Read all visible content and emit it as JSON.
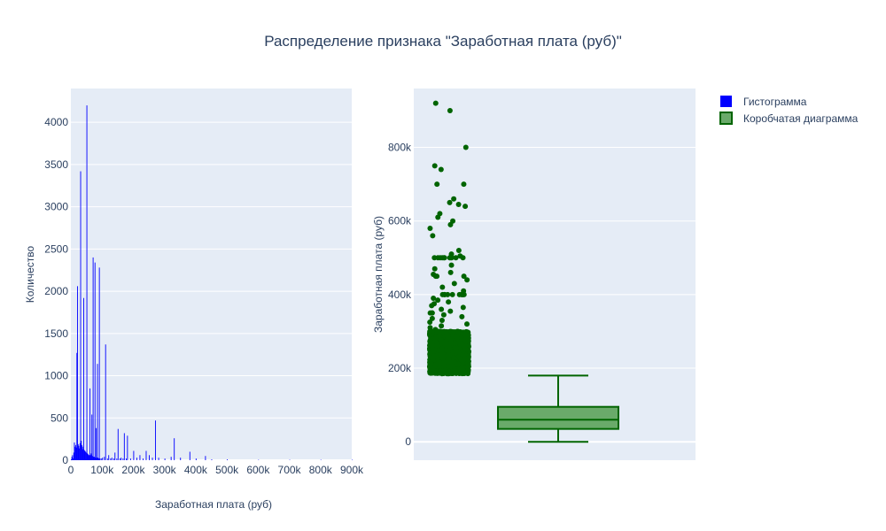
{
  "chart_data": {
    "title": "Распределение признака \"Заработная плата (руб)\"",
    "legend": {
      "placement": "top-right",
      "items": [
        {
          "name": "Гистограмма",
          "color": "#0000ff",
          "swatch": "square"
        },
        {
          "name": "Коробчатая диаграмма",
          "color": "#006400",
          "swatch": "box"
        }
      ]
    },
    "colors": {
      "plot_bg": "#e5ecf6",
      "grid": "#ffffff",
      "histogram": "#0000ff",
      "box": "#006400",
      "box_fill": "#6aaa6a"
    },
    "charts": [
      {
        "type": "bar",
        "subtype": "histogram",
        "series_name": "Гистограмма",
        "xlabel": "Заработная плата (руб)",
        "ylabel": "Количество",
        "xlim": [
          0,
          900000
        ],
        "ylim": [
          0,
          4400
        ],
        "grid": true,
        "x_ticks": [
          {
            "value": 0,
            "label": "0"
          },
          {
            "value": 100000,
            "label": "100k"
          },
          {
            "value": 200000,
            "label": "200k"
          },
          {
            "value": 300000,
            "label": "300k"
          },
          {
            "value": 400000,
            "label": "400k"
          },
          {
            "value": 500000,
            "label": "500k"
          },
          {
            "value": 600000,
            "label": "600k"
          },
          {
            "value": 700000,
            "label": "700k"
          },
          {
            "value": 800000,
            "label": "800k"
          },
          {
            "value": 900000,
            "label": "900k"
          }
        ],
        "y_ticks": [
          {
            "value": 0,
            "label": "0"
          },
          {
            "value": 500,
            "label": "500"
          },
          {
            "value": 1000,
            "label": "1000"
          },
          {
            "value": 1500,
            "label": "1500"
          },
          {
            "value": 2000,
            "label": "2000"
          },
          {
            "value": 2500,
            "label": "2500"
          },
          {
            "value": 3000,
            "label": "3000"
          },
          {
            "value": 3500,
            "label": "3500"
          },
          {
            "value": 4000,
            "label": "4000"
          }
        ],
        "bins": [
          {
            "x": 0,
            "y": 10
          },
          {
            "x": 2000,
            "y": 40
          },
          {
            "x": 4000,
            "y": 60
          },
          {
            "x": 6000,
            "y": 20
          },
          {
            "x": 8000,
            "y": 90
          },
          {
            "x": 10000,
            "y": 210
          },
          {
            "x": 12000,
            "y": 160
          },
          {
            "x": 14000,
            "y": 180
          },
          {
            "x": 16000,
            "y": 150
          },
          {
            "x": 18000,
            "y": 1270
          },
          {
            "x": 20000,
            "y": 2060
          },
          {
            "x": 22000,
            "y": 190
          },
          {
            "x": 24000,
            "y": 170
          },
          {
            "x": 26000,
            "y": 140
          },
          {
            "x": 28000,
            "y": 200
          },
          {
            "x": 30000,
            "y": 3420
          },
          {
            "x": 32000,
            "y": 230
          },
          {
            "x": 34000,
            "y": 180
          },
          {
            "x": 36000,
            "y": 160
          },
          {
            "x": 38000,
            "y": 130
          },
          {
            "x": 40000,
            "y": 1920
          },
          {
            "x": 42000,
            "y": 120
          },
          {
            "x": 44000,
            "y": 110
          },
          {
            "x": 46000,
            "y": 100
          },
          {
            "x": 48000,
            "y": 90
          },
          {
            "x": 50000,
            "y": 4200
          },
          {
            "x": 52000,
            "y": 80
          },
          {
            "x": 54000,
            "y": 70
          },
          {
            "x": 56000,
            "y": 60
          },
          {
            "x": 58000,
            "y": 60
          },
          {
            "x": 60000,
            "y": 850
          },
          {
            "x": 62000,
            "y": 60
          },
          {
            "x": 64000,
            "y": 80
          },
          {
            "x": 66000,
            "y": 540
          },
          {
            "x": 68000,
            "y": 50
          },
          {
            "x": 70000,
            "y": 2400
          },
          {
            "x": 72000,
            "y": 40
          },
          {
            "x": 74000,
            "y": 40
          },
          {
            "x": 76000,
            "y": 2340
          },
          {
            "x": 78000,
            "y": 30
          },
          {
            "x": 80000,
            "y": 380
          },
          {
            "x": 82000,
            "y": 30
          },
          {
            "x": 84000,
            "y": 1140
          },
          {
            "x": 86000,
            "y": 30
          },
          {
            "x": 88000,
            "y": 20
          },
          {
            "x": 90000,
            "y": 2280
          },
          {
            "x": 92000,
            "y": 20
          },
          {
            "x": 96000,
            "y": 20
          },
          {
            "x": 100000,
            "y": 30
          },
          {
            "x": 106000,
            "y": 40
          },
          {
            "x": 110000,
            "y": 1370
          },
          {
            "x": 116000,
            "y": 20
          },
          {
            "x": 120000,
            "y": 60
          },
          {
            "x": 126000,
            "y": 20
          },
          {
            "x": 130000,
            "y": 30
          },
          {
            "x": 136000,
            "y": 20
          },
          {
            "x": 140000,
            "y": 90
          },
          {
            "x": 146000,
            "y": 20
          },
          {
            "x": 150000,
            "y": 370
          },
          {
            "x": 156000,
            "y": 20
          },
          {
            "x": 160000,
            "y": 30
          },
          {
            "x": 166000,
            "y": 20
          },
          {
            "x": 170000,
            "y": 320
          },
          {
            "x": 176000,
            "y": 20
          },
          {
            "x": 180000,
            "y": 290
          },
          {
            "x": 190000,
            "y": 20
          },
          {
            "x": 200000,
            "y": 110
          },
          {
            "x": 210000,
            "y": 30
          },
          {
            "x": 220000,
            "y": 60
          },
          {
            "x": 230000,
            "y": 20
          },
          {
            "x": 240000,
            "y": 110
          },
          {
            "x": 250000,
            "y": 60
          },
          {
            "x": 260000,
            "y": 30
          },
          {
            "x": 270000,
            "y": 470
          },
          {
            "x": 280000,
            "y": 30
          },
          {
            "x": 300000,
            "y": 20
          },
          {
            "x": 320000,
            "y": 40
          },
          {
            "x": 330000,
            "y": 260
          },
          {
            "x": 350000,
            "y": 30
          },
          {
            "x": 380000,
            "y": 100
          },
          {
            "x": 400000,
            "y": 20
          },
          {
            "x": 430000,
            "y": 50
          },
          {
            "x": 450000,
            "y": 10
          },
          {
            "x": 500000,
            "y": 10
          },
          {
            "x": 600000,
            "y": 5
          },
          {
            "x": 700000,
            "y": 5
          },
          {
            "x": 800000,
            "y": 5
          },
          {
            "x": 900000,
            "y": 5
          }
        ],
        "bin_width": 1600
      },
      {
        "type": "box",
        "series_name": "Коробчатая диаграмма",
        "ylabel": "Заработная плата (руб)",
        "ylim": [
          -50000,
          960000
        ],
        "grid": true,
        "y_ticks": [
          {
            "value": 0,
            "label": "0"
          },
          {
            "value": 200000,
            "label": "200k"
          },
          {
            "value": 400000,
            "label": "400k"
          },
          {
            "value": 600000,
            "label": "600k"
          },
          {
            "value": 800000,
            "label": "800k"
          }
        ],
        "stats": {
          "min": 0,
          "q1": 35000,
          "median": 60000,
          "q3": 95000,
          "max": 180000
        },
        "outlier_band": {
          "min": 185000,
          "max": 300000,
          "count": 1800
        },
        "outliers": [
          920000,
          900000,
          800000,
          750000,
          740000,
          700000,
          700000,
          660000,
          650000,
          645000,
          640000,
          620000,
          610000,
          600000,
          590000,
          580000,
          560000,
          520000,
          510000,
          505000,
          500000,
          500000,
          500000,
          500000,
          500000,
          500000,
          500000,
          500000,
          500000,
          500000,
          480000,
          470000,
          460000,
          455000,
          450000,
          450000,
          450000,
          440000,
          430000,
          420000,
          410000,
          400000,
          400000,
          400000,
          400000,
          400000,
          400000,
          400000,
          400000,
          400000,
          400000,
          390000,
          385000,
          380000,
          375000,
          370000,
          365000,
          360000,
          355000,
          350000,
          350000,
          350000,
          345000,
          340000,
          335000,
          330000,
          325000,
          320000,
          315000,
          310000,
          305000,
          300000,
          300000,
          300000,
          300000,
          300000
        ]
      }
    ]
  }
}
